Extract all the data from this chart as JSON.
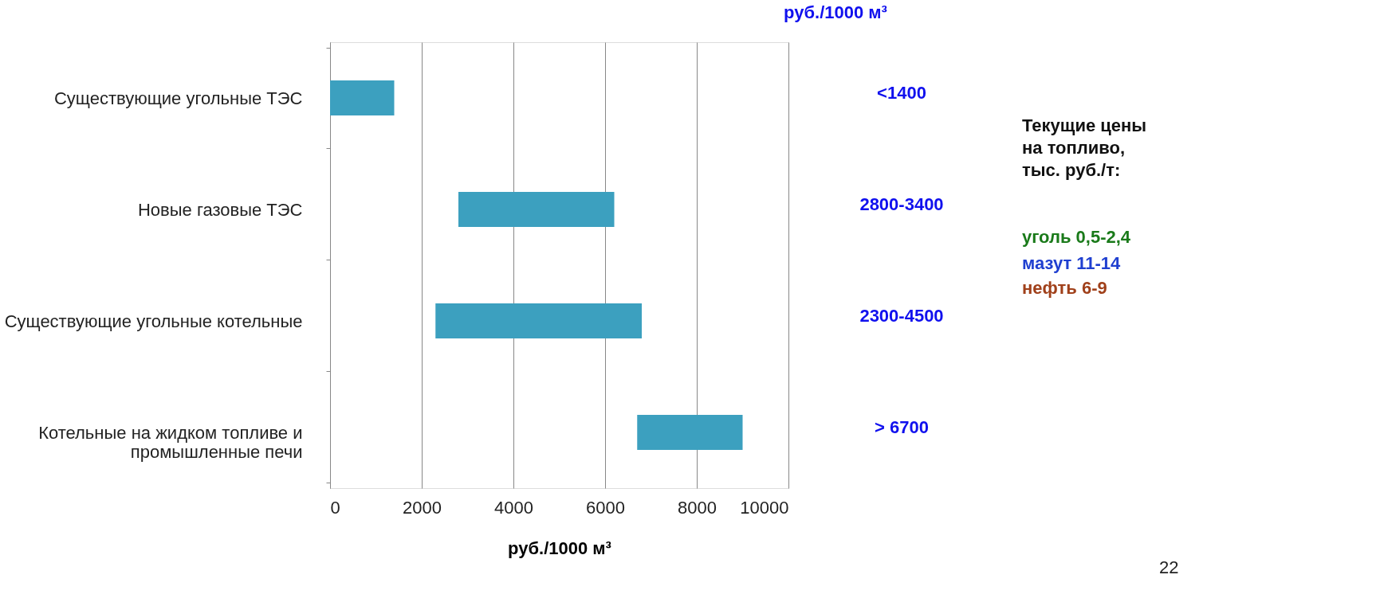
{
  "chart_data": {
    "type": "bar",
    "orientation": "horizontal",
    "categories": [
      "Существующие угольные ТЭС",
      "Новые газовые ТЭС",
      "Существующие угольные котельные",
      "Котельные на жидком топливе и промышленные печи"
    ],
    "base": [
      0,
      2800,
      2300,
      6700
    ],
    "values": [
      1400,
      3400,
      4500,
      2300
    ],
    "color": "#3ca0bf",
    "xlim": [
      0,
      10000
    ],
    "xticks": [
      0,
      2000,
      4000,
      6000,
      8000,
      10000
    ],
    "xlabel": "руб./1000 м³",
    "grid": "x",
    "annotations": [
      "<1400",
      "2800-3400",
      "2300-4500",
      "> 6700",
      "руб./1000 м³",
      "Текущие цены на топливо, тыс. руб./т:",
      "уголь 0,5-2,4",
      "мазут  11-14",
      "нефть    6-9",
      "22"
    ]
  }
}
